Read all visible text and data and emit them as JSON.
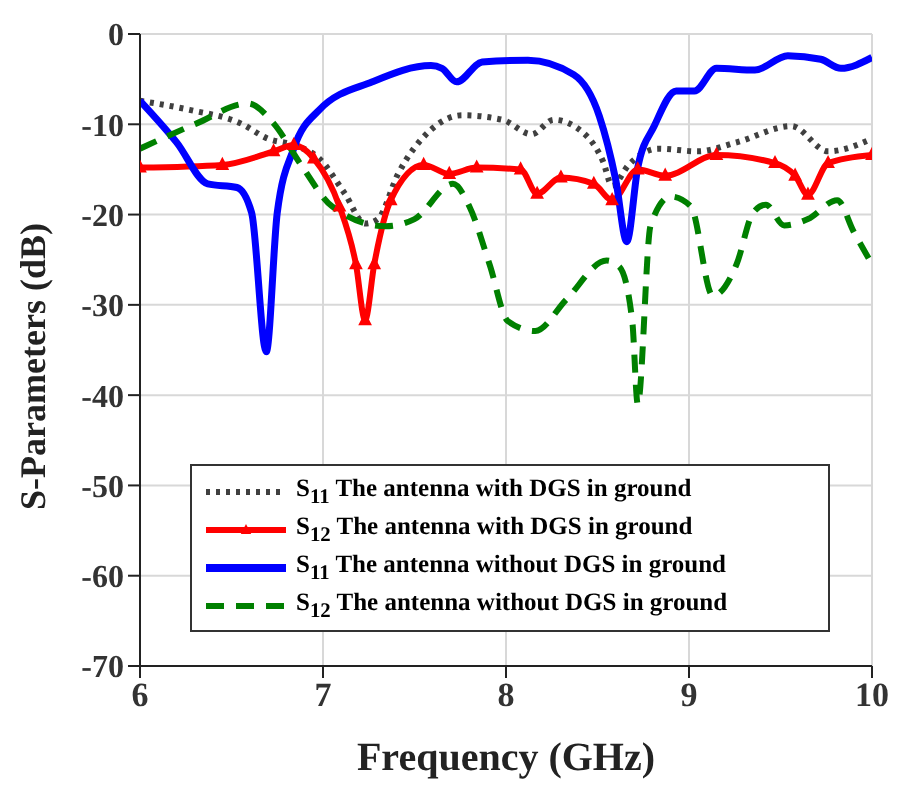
{
  "chart_data": {
    "type": "line",
    "xlabel": "Frequency (GHz)",
    "ylabel": "S-Parameters (dB)",
    "xlim": [
      6,
      10
    ],
    "xticks": [
      6,
      7,
      8,
      9,
      10
    ],
    "ylim": [
      -70,
      0
    ],
    "yticks": [
      -70,
      -60,
      -50,
      -40,
      -30,
      -20,
      -10,
      0
    ],
    "grid": true,
    "legend": "bottom",
    "line_style": "solid",
    "series": [
      {
        "name": "S$_{11}$ The antenna with DGS in ground",
        "color": "#404040",
        "line_style": "dotted",
        "x": [
          6,
          6.27,
          6.55,
          6.7,
          6.84,
          6.98,
          7.12,
          7.23,
          7.3,
          7.41,
          7.59,
          7.76,
          7.98,
          8.14,
          8.26,
          8.42,
          8.53,
          8.58,
          8.67,
          8.83,
          9.05,
          9.26,
          9.56,
          9.76,
          10
        ],
        "values": [
          -7.4,
          -8.4,
          -9.9,
          -11.6,
          -12.3,
          -13.8,
          -17.7,
          -21,
          -20.5,
          -15.5,
          -10.6,
          -9,
          -9.5,
          -11.1,
          -9.5,
          -10.9,
          -14.1,
          -16.8,
          -14.5,
          -12.7,
          -13,
          -12,
          -10.2,
          -13,
          -11.6
        ]
      },
      {
        "name": "S$_{12}$ The antenna with DGS in ground",
        "color": "#ff0000",
        "marker": "triangle",
        "x": [
          6,
          6.45,
          6.73,
          6.84,
          6.95,
          7.09,
          7.18,
          7.23,
          7.28,
          7.37,
          7.55,
          7.69,
          7.84,
          8.08,
          8.17,
          8.3,
          8.48,
          8.58,
          8.72,
          8.87,
          9.15,
          9.47,
          9.58,
          9.65,
          9.76,
          10
        ],
        "values": [
          -14.8,
          -14.5,
          -13,
          -12.3,
          -13.8,
          -19.1,
          -25.5,
          -31.7,
          -25.5,
          -18.4,
          -14.5,
          -15.5,
          -14.8,
          -15,
          -17.7,
          -15.9,
          -16.6,
          -18.4,
          -15,
          -15.7,
          -13.4,
          -14.3,
          -15.7,
          -17.8,
          -14.3,
          -13.4
        ]
      },
      {
        "name": "S$_{11}$ The antenna without DGS in  ground",
        "color": "#0000ff",
        "x": [
          6,
          6.2,
          6.37,
          6.53,
          6.61,
          6.69,
          6.75,
          6.84,
          6.98,
          7.27,
          7.59,
          7.65,
          7.73,
          7.87,
          8.12,
          8.37,
          8.51,
          8.6,
          8.66,
          8.72,
          8.81,
          8.93,
          9.03,
          9.15,
          9.36,
          9.54,
          9.72,
          9.83,
          10
        ],
        "values": [
          -7.4,
          -12,
          -16.6,
          -17,
          -19.8,
          -35.2,
          -19.8,
          -12.7,
          -8.4,
          -5.3,
          -3.5,
          -3.8,
          -5.3,
          -3.1,
          -2.9,
          -4.5,
          -9.1,
          -16.2,
          -23,
          -14.8,
          -10.2,
          -6.3,
          -6.3,
          -3.8,
          -4,
          -2.4,
          -2.8,
          -3.8,
          -2.6
        ]
      },
      {
        "name": "S$_{12}$ The antenna without DGS in  ground",
        "color": "#008000",
        "line_style": "dashed",
        "x": [
          6,
          6.31,
          6.59,
          6.73,
          6.88,
          7.05,
          7.34,
          7.5,
          7.71,
          7.8,
          7.91,
          8.01,
          8.16,
          8.33,
          8.55,
          8.62,
          8.69,
          8.72,
          8.79,
          8.9,
          9.01,
          9.13,
          9.26,
          9.35,
          9.42,
          9.52,
          9.65,
          9.81,
          9.9,
          10
        ],
        "values": [
          -12.7,
          -9.9,
          -7.7,
          -9.9,
          -14.5,
          -19.1,
          -21.3,
          -20.5,
          -16.6,
          -19.1,
          -25.5,
          -31.8,
          -32.9,
          -29.4,
          -25.1,
          -25.8,
          -31.8,
          -41,
          -21.2,
          -18,
          -19.1,
          -29,
          -25.5,
          -19.8,
          -18.9,
          -21.2,
          -20.5,
          -18.4,
          -21.9,
          -25.5
        ]
      }
    ]
  }
}
